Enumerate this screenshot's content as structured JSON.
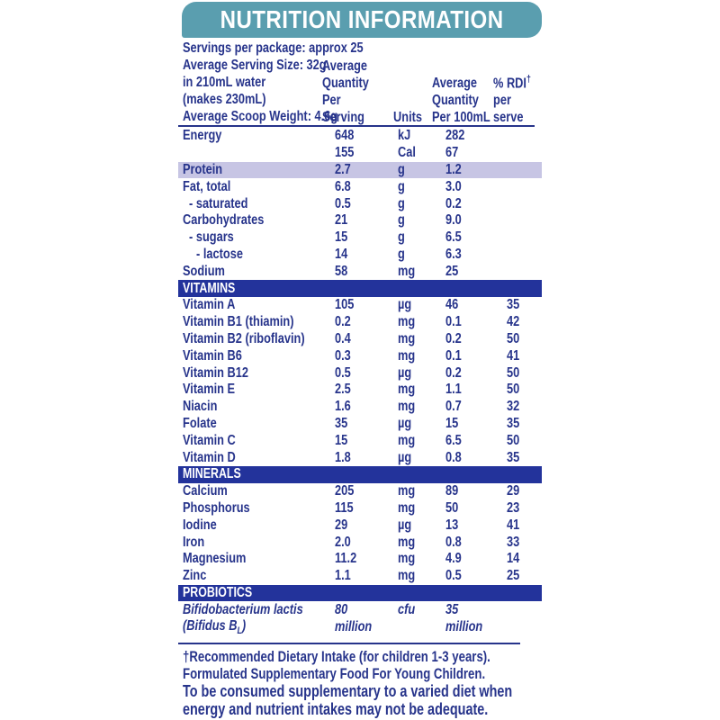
{
  "colors": {
    "banner_bg": "#5A9EAF",
    "text_navy": "#27348B",
    "section_bar_bg": "#23339B",
    "highlight_row_bg": "#C7C5E4"
  },
  "banner": {
    "title": "NUTRITION INFORMATION"
  },
  "serving_info": [
    "Servings per package: approx 25",
    "Average Serving Size: 32g",
    "in 210mL water",
    "(makes 230mL)",
    "Average Scoop Weight: 4.6g"
  ],
  "column_headers": {
    "per_serving": "Average\nQuantity\nPer Serving",
    "units": "Units",
    "per_100ml": "Average\nQuantity\nPer 100mL",
    "rdi_line1": "% RDI",
    "rdi_sup": "†",
    "rdi_line2": "per serve"
  },
  "sections": [
    {
      "header": "",
      "rows": [
        {
          "label": "Energy",
          "serve": "648",
          "unit": "kJ",
          "per100": "282",
          "rdi": "",
          "indent": 0,
          "highlight": false,
          "italic": false
        },
        {
          "label": "",
          "serve": "155",
          "unit": "Cal",
          "per100": "67",
          "rdi": "",
          "indent": 0,
          "highlight": false,
          "italic": false
        },
        {
          "label": "Protein",
          "serve": "2.7",
          "unit": "g",
          "per100": "1.2",
          "rdi": "",
          "indent": 0,
          "highlight": true,
          "italic": false
        },
        {
          "label": "Fat, total",
          "serve": "6.8",
          "unit": "g",
          "per100": "3.0",
          "rdi": "",
          "indent": 0,
          "highlight": false,
          "italic": false
        },
        {
          "label": "- saturated",
          "serve": "0.5",
          "unit": "g",
          "per100": "0.2",
          "rdi": "",
          "indent": 1,
          "highlight": false,
          "italic": false
        },
        {
          "label": "Carbohydrates",
          "serve": "21",
          "unit": "g",
          "per100": "9.0",
          "rdi": "",
          "indent": 0,
          "highlight": false,
          "italic": false
        },
        {
          "label": "- sugars",
          "serve": "15",
          "unit": "g",
          "per100": "6.5",
          "rdi": "",
          "indent": 1,
          "highlight": false,
          "italic": false
        },
        {
          "label": "- lactose",
          "serve": "14",
          "unit": "g",
          "per100": "6.3",
          "rdi": "",
          "indent": 2,
          "highlight": false,
          "italic": false
        },
        {
          "label": "Sodium",
          "serve": "58",
          "unit": "mg",
          "per100": "25",
          "rdi": "",
          "indent": 0,
          "highlight": false,
          "italic": false
        }
      ]
    },
    {
      "header": "VITAMINS",
      "rows": [
        {
          "label": "Vitamin A",
          "serve": "105",
          "unit": "µg",
          "per100": "46",
          "rdi": "35",
          "indent": 0,
          "highlight": false,
          "italic": false
        },
        {
          "label": "Vitamin B1 (thiamin)",
          "serve": "0.2",
          "unit": "mg",
          "per100": "0.1",
          "rdi": "42",
          "indent": 0,
          "highlight": false,
          "italic": false
        },
        {
          "label": "Vitamin B2 (riboflavin)",
          "serve": "0.4",
          "unit": "mg",
          "per100": "0.2",
          "rdi": "50",
          "indent": 0,
          "highlight": false,
          "italic": false
        },
        {
          "label": "Vitamin B6",
          "serve": "0.3",
          "unit": "mg",
          "per100": "0.1",
          "rdi": "41",
          "indent": 0,
          "highlight": false,
          "italic": false
        },
        {
          "label": "Vitamin B12",
          "serve": "0.5",
          "unit": "µg",
          "per100": "0.2",
          "rdi": "50",
          "indent": 0,
          "highlight": false,
          "italic": false
        },
        {
          "label": "Vitamin E",
          "serve": "2.5",
          "unit": "mg",
          "per100": "1.1",
          "rdi": "50",
          "indent": 0,
          "highlight": false,
          "italic": false
        },
        {
          "label": "Niacin",
          "serve": "1.6",
          "unit": "mg",
          "per100": "0.7",
          "rdi": "32",
          "indent": 0,
          "highlight": false,
          "italic": false
        },
        {
          "label": "Folate",
          "serve": "35",
          "unit": "µg",
          "per100": "15",
          "rdi": "35",
          "indent": 0,
          "highlight": false,
          "italic": false
        },
        {
          "label": "Vitamin C",
          "serve": "15",
          "unit": "mg",
          "per100": "6.5",
          "rdi": "50",
          "indent": 0,
          "highlight": false,
          "italic": false
        },
        {
          "label": "Vitamin D",
          "serve": "1.8",
          "unit": "µg",
          "per100": "0.8",
          "rdi": "35",
          "indent": 0,
          "highlight": false,
          "italic": false
        }
      ]
    },
    {
      "header": "MINERALS",
      "rows": [
        {
          "label": "Calcium",
          "serve": "205",
          "unit": "mg",
          "per100": "89",
          "rdi": "29",
          "indent": 0,
          "highlight": false,
          "italic": false
        },
        {
          "label": "Phosphorus",
          "serve": "115",
          "unit": "mg",
          "per100": "50",
          "rdi": "23",
          "indent": 0,
          "highlight": false,
          "italic": false
        },
        {
          "label": "Iodine",
          "serve": "29",
          "unit": "µg",
          "per100": "13",
          "rdi": "41",
          "indent": 0,
          "highlight": false,
          "italic": false
        },
        {
          "label": "Iron",
          "serve": "2.0",
          "unit": "mg",
          "per100": "0.8",
          "rdi": "33",
          "indent": 0,
          "highlight": false,
          "italic": false
        },
        {
          "label": "Magnesium",
          "serve": "11.2",
          "unit": "mg",
          "per100": "4.9",
          "rdi": "14",
          "indent": 0,
          "highlight": false,
          "italic": false
        },
        {
          "label": "Zinc",
          "serve": "1.1",
          "unit": "mg",
          "per100": "0.5",
          "rdi": "25",
          "indent": 0,
          "highlight": false,
          "italic": false
        }
      ]
    },
    {
      "header": "PROBIOTICS",
      "rows": [
        {
          "label": "Bifidobacterium lactis",
          "serve": "80",
          "unit": "cfu",
          "per100": "35",
          "rdi": "",
          "indent": 0,
          "highlight": false,
          "italic": true
        },
        {
          "label": "(Bifidus B",
          "label_sub": "L",
          "label_end": ")",
          "serve": "million",
          "unit": "",
          "per100": "million",
          "rdi": "",
          "indent": 0,
          "highlight": false,
          "italic": true
        }
      ]
    }
  ],
  "footnote": [
    "†Recommended Dietary Intake (for children 1-3 years).",
    "Formulated Supplementary Food For Young Children.",
    "To be consumed supplementary to a varied diet when",
    "energy and nutrient intakes may not be adequate."
  ]
}
